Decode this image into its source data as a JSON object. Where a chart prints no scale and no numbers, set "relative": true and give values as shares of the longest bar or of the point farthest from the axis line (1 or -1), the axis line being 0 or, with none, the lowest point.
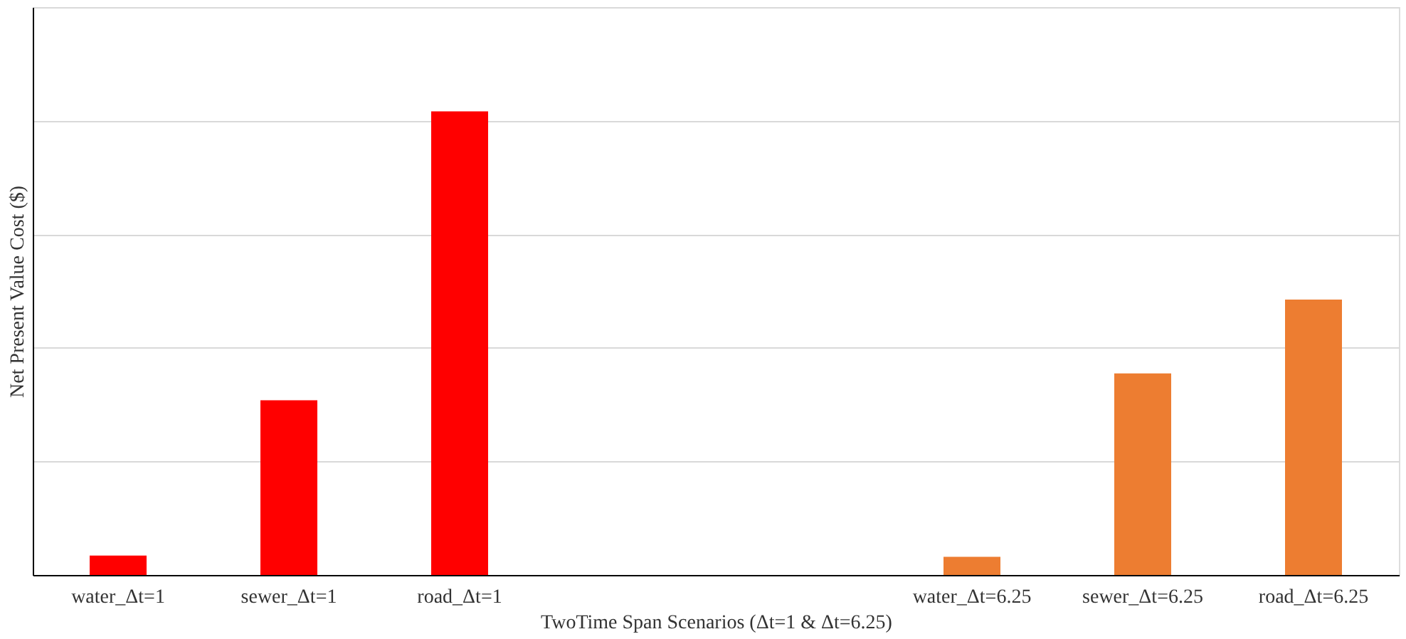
{
  "chart_data": {
    "type": "bar",
    "relative": true,
    "xlabel": "TwoTime Span Scenarios (Δt=1 & Δt=6.25)",
    "ylabel": "Net Present Value Cost ($)",
    "categories": [
      "water_Δt=1",
      "sewer_Δt=1",
      "road_Δt=1",
      null,
      null,
      "water_Δt=6.25",
      "sewer_Δt=6.25",
      "road_Δt=6.25"
    ],
    "values": [
      0.042,
      0.377,
      1,
      null,
      null,
      0.039,
      0.435,
      0.594
    ],
    "colors": [
      "#ff0000",
      "#ff0000",
      "#ff0000",
      "#ff0000",
      "#ed7d31",
      "#ed7d31",
      "#ed7d31",
      "#ed7d31"
    ],
    "grid": "y"
  }
}
